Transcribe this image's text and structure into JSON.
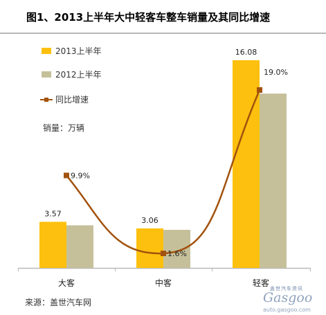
{
  "header": {
    "title": "图1、2013上半年大中轻客车整车销量及其同比增速"
  },
  "unit_label": "销量：万辆",
  "source_label": "来源：盖世汽车网",
  "watermark": {
    "tag": "盖世汽车资讯",
    "logo": "Gasgoo",
    "url": "auto.gasgoo.com"
  },
  "colors": {
    "bar2013": "#fdc00e",
    "bar2012": "#c6c09a",
    "line": "#a2520d",
    "marker": "#a2520d",
    "axis": "#b8b8b8"
  },
  "chart_data": {
    "type": "bar",
    "categories": [
      "大客",
      "中客",
      "轻客"
    ],
    "series": [
      {
        "name": "2013上半年",
        "kind": "bar",
        "values": [
          3.57,
          3.06,
          16.08
        ],
        "value_labels": [
          "3.57",
          "3.06",
          "16.08"
        ]
      },
      {
        "name": "2012上半年",
        "kind": "bar",
        "values": [
          3.3,
          2.95,
          13.5
        ]
      },
      {
        "name": "同比增速",
        "kind": "line",
        "values": [
          9.9,
          1.6,
          19.0
        ],
        "value_labels": [
          "9.9%",
          "1.6%",
          "19.0%"
        ]
      }
    ],
    "legend_position": "top-left",
    "grid": false
  }
}
